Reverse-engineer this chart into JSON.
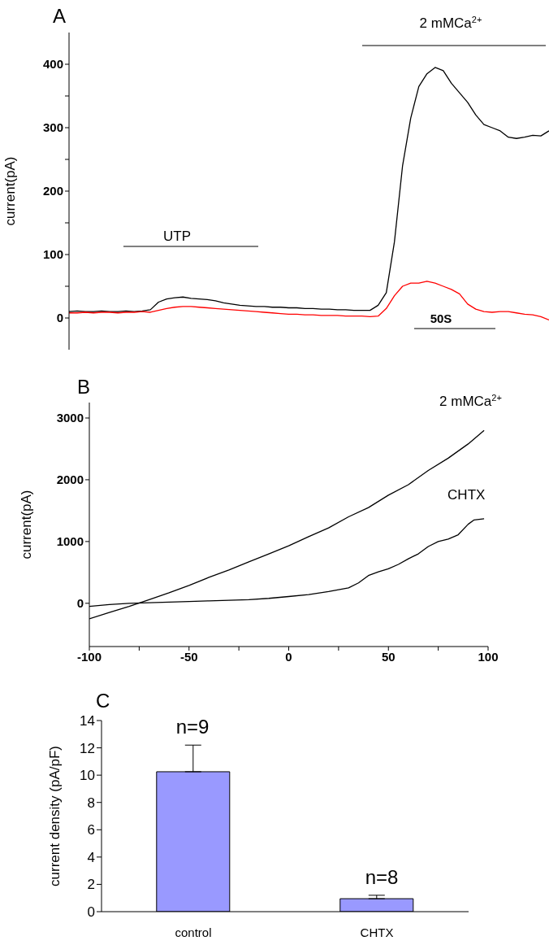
{
  "chart_data": [
    {
      "type": "line",
      "title": "A",
      "ylabel": "current(pA)",
      "tick_labels": "y",
      "categories": [
        null,
        null,
        null,
        null,
        null,
        null,
        null,
        null,
        null,
        null,
        null,
        null,
        null,
        null,
        null,
        null,
        null,
        null,
        null,
        null,
        null,
        null,
        null,
        null,
        null,
        null,
        null,
        null,
        null,
        null,
        null,
        null,
        null,
        null,
        null,
        null,
        null,
        null,
        null,
        null,
        null,
        null,
        null,
        null,
        null,
        null,
        null,
        null,
        null,
        null,
        null,
        null,
        null,
        null,
        null,
        null,
        null,
        null,
        null,
        null
      ],
      "series": [
        {
          "color": "#000000",
          "values": [
            10,
            11,
            10,
            10,
            11,
            10,
            10,
            11,
            10,
            11,
            13,
            25,
            30,
            32,
            33,
            31,
            30,
            29,
            27,
            24,
            22,
            20,
            19,
            18,
            18,
            17,
            17,
            16,
            16,
            15,
            15,
            14,
            14,
            13,
            13,
            12,
            12,
            12,
            20,
            40,
            120,
            240,
            315,
            365,
            385,
            395,
            390,
            370,
            355,
            340,
            320,
            305,
            300,
            295,
            285,
            283,
            285,
            288,
            287,
            295
          ]
        },
        {
          "color": "#ff0000",
          "values": [
            8,
            8,
            9,
            8,
            9,
            9,
            8,
            9,
            9,
            10,
            9,
            12,
            15,
            17,
            18,
            18,
            17,
            16,
            15,
            14,
            13,
            12,
            11,
            10,
            9,
            8,
            7,
            6,
            6,
            5,
            5,
            4,
            4,
            4,
            3,
            3,
            3,
            2,
            3,
            15,
            35,
            50,
            55,
            55,
            58,
            55,
            50,
            45,
            38,
            22,
            14,
            10,
            9,
            10,
            10,
            8,
            6,
            5,
            2,
            -3
          ]
        }
      ],
      "ylim": [
        -50,
        450
      ],
      "yticks": [
        0,
        {
          "value": 50,
          "label": null
        },
        100,
        {
          "value": 150,
          "label": null
        },
        200,
        {
          "value": 250,
          "label": null
        },
        300,
        {
          "value": 350,
          "label": null
        },
        400
      ],
      "annotations": [
        "UTP",
        "2 mMCa$^{2+}$",
        "50S"
      ],
      "grid": false,
      "legend": false
    },
    {
      "type": "line",
      "title": "B",
      "ylabel": "current(pA)",
      "series": [
        {
          "name": "2 mMCa$^{2+}$",
          "color": "#000000",
          "x": [
            -100,
            -90,
            -80,
            -70,
            -60,
            -50,
            -40,
            -30,
            -20,
            -10,
            0,
            10,
            20,
            30,
            40,
            50,
            60,
            70,
            80,
            90,
            98
          ],
          "values": [
            -250,
            -150,
            -50,
            60,
            170,
            290,
            420,
            540,
            670,
            800,
            930,
            1080,
            1220,
            1400,
            1550,
            1750,
            1920,
            2150,
            2350,
            2580,
            2800
          ]
        },
        {
          "name": "CHTX",
          "color": "#000000",
          "x": [
            -100,
            -90,
            -80,
            -70,
            -60,
            -50,
            -40,
            -30,
            -20,
            -10,
            0,
            10,
            20,
            25,
            30,
            35,
            40,
            45,
            50,
            55,
            60,
            65,
            70,
            75,
            80,
            85,
            90,
            93,
            98
          ],
          "values": [
            -50,
            -20,
            0,
            10,
            20,
            30,
            40,
            50,
            60,
            80,
            110,
            140,
            190,
            220,
            250,
            330,
            450,
            510,
            560,
            630,
            720,
            800,
            920,
            1000,
            1040,
            1110,
            1280,
            1350,
            1370
          ]
        }
      ],
      "xlim": [
        -100,
        100
      ],
      "xticks": [
        -100,
        {
          "value": -75,
          "label": null
        },
        -50,
        {
          "value": -25,
          "label": null
        },
        0,
        {
          "value": 25,
          "label": null
        },
        50,
        {
          "value": 75,
          "label": null
        },
        100
      ],
      "ylim": [
        -700,
        3250
      ],
      "yticks": [
        0,
        1000,
        2000,
        3000
      ],
      "grid": false,
      "legend": false
    },
    {
      "type": "bar",
      "title": "C",
      "ylabel": "current density (pA/pF)",
      "categories": [
        "control",
        "CHTX"
      ],
      "values": [
        10.25,
        0.95
      ],
      "errors": [
        [
          10.25,
          12.2
        ],
        [
          0.95,
          1.2
        ]
      ],
      "color": "#9999ff",
      "ylim": [
        0,
        14
      ],
      "yticks": [
        0,
        2,
        4,
        6,
        8,
        10,
        12,
        14
      ],
      "annotations": [
        "n=9",
        "n=8"
      ],
      "grid": false,
      "legend": false
    }
  ]
}
